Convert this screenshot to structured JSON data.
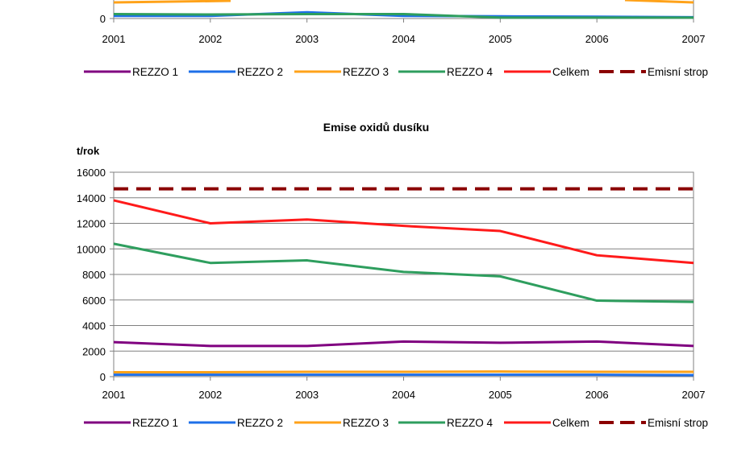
{
  "colors": {
    "REZZO 1": "#800080",
    "REZZO 2": "#1e6fe8",
    "REZZO 3": "#ffa219",
    "REZZO 4": "#2e9e5e",
    "Celkem": "#ff1a1a",
    "Emisní strop": "#8b0000"
  },
  "chart_data": [
    {
      "type": "line",
      "title": "",
      "ylabel": "",
      "x": [
        "2001",
        "2002",
        "2003",
        "2004",
        "2005",
        "2006",
        "2007"
      ],
      "y_ticks": [
        "0"
      ],
      "series": [
        {
          "name": "REZZO 1",
          "values": [
            null,
            null,
            null,
            null,
            null,
            null,
            null
          ]
        },
        {
          "name": "REZZO 2",
          "values": [
            0.6,
            0.6,
            1.4,
            0.6,
            0.5,
            0.4,
            0.3
          ]
        },
        {
          "name": "REZZO 3",
          "values": [
            null,
            null,
            null,
            null,
            null,
            null,
            null
          ]
        },
        {
          "name": "REZZO 4",
          "values": [
            1.0,
            0.9,
            1.0,
            1.0,
            0.2,
            0.2,
            0.2
          ]
        },
        {
          "name": "Celkem",
          "values": [
            null,
            null,
            null,
            null,
            null,
            null,
            null
          ]
        },
        {
          "name": "Emisní strop",
          "values": [
            null,
            null,
            null,
            null,
            null,
            null,
            null
          ]
        }
      ],
      "legend": [
        "REZZO 1",
        "REZZO 2",
        "REZZO 3",
        "REZZO 4",
        "Celkem",
        "Emisní strop"
      ],
      "legend_position": "bottom"
    },
    {
      "type": "line",
      "title": "Emise oxidů dusíku",
      "ylabel": "t/rok",
      "xlabel": "",
      "x": [
        "2001",
        "2002",
        "2003",
        "2004",
        "2005",
        "2006",
        "2007"
      ],
      "ylim": [
        0,
        16000
      ],
      "y_ticks": [
        "0",
        "2000",
        "4000",
        "6000",
        "8000",
        "10000",
        "12000",
        "14000",
        "16000"
      ],
      "grid": true,
      "series": [
        {
          "name": "REZZO 1",
          "values": [
            2700,
            2400,
            2400,
            2750,
            2650,
            2750,
            2400
          ]
        },
        {
          "name": "REZZO 2",
          "values": [
            150,
            150,
            150,
            150,
            150,
            150,
            120
          ]
        },
        {
          "name": "REZZO 3",
          "values": [
            350,
            350,
            380,
            380,
            400,
            380,
            380
          ]
        },
        {
          "name": "REZZO 4",
          "values": [
            10400,
            8900,
            9100,
            8200,
            7850,
            5950,
            5850
          ]
        },
        {
          "name": "Celkem",
          "values": [
            13800,
            12000,
            12300,
            11800,
            11400,
            9500,
            8900
          ]
        },
        {
          "name": "Emisní strop",
          "values": [
            14700,
            14700,
            14700,
            14700,
            14700,
            14700,
            14700
          ]
        }
      ],
      "legend": [
        "REZZO 1",
        "REZZO 2",
        "REZZO 3",
        "REZZO 4",
        "Celkem",
        "Emisní strop"
      ],
      "legend_position": "bottom"
    }
  ]
}
